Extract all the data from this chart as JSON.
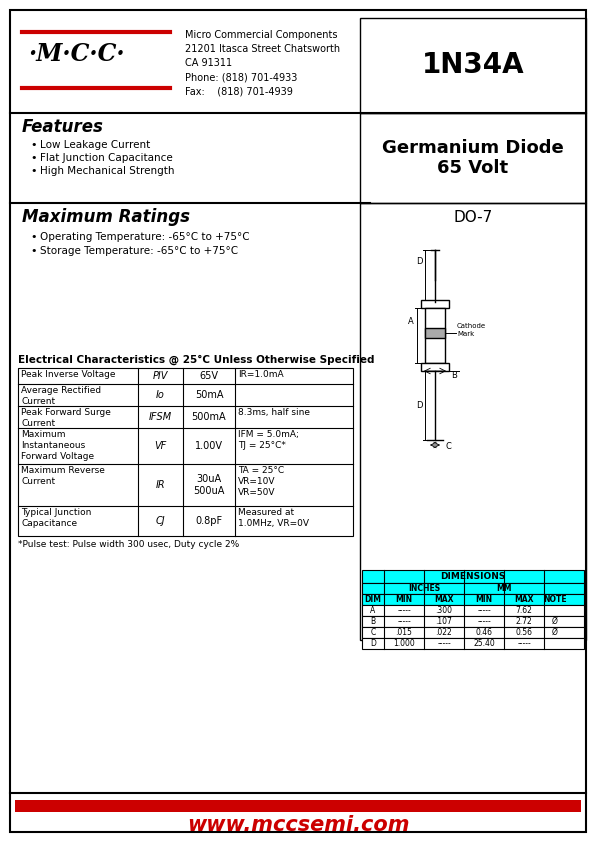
{
  "page_bg": "#ffffff",
  "red_color": "#cc0000",
  "cyan_color": "#00ffff",
  "logo_text": "·M·C·C·",
  "company_line1": "Micro Commercial Components",
  "company_line2": "21201 Itasca Street Chatsworth",
  "company_line3": "CA 91311",
  "company_line4": "Phone: (818) 701-4933",
  "company_line5": "Fax:    (818) 701-4939",
  "part_number": "1N34A",
  "device_type": "Germanium Diode\n65 Volt",
  "features_title": "Features",
  "features": [
    "Low Leakage Current",
    "Flat Junction Capacitance",
    "High Mechanical Strength"
  ],
  "max_ratings_title": "Maximum Ratings",
  "max_ratings": [
    "Operating Temperature: -65°C to +75°C",
    "Storage Temperature: -65°C to +75°C"
  ],
  "elec_char_title": "Electrical Characteristics @ 25°C Unless Otherwise Specified",
  "pulse_note": "*Pulse test: Pulse width 300 usec, Duty cycle 2%",
  "package": "DO-7",
  "website": "www.mccsemi.com"
}
